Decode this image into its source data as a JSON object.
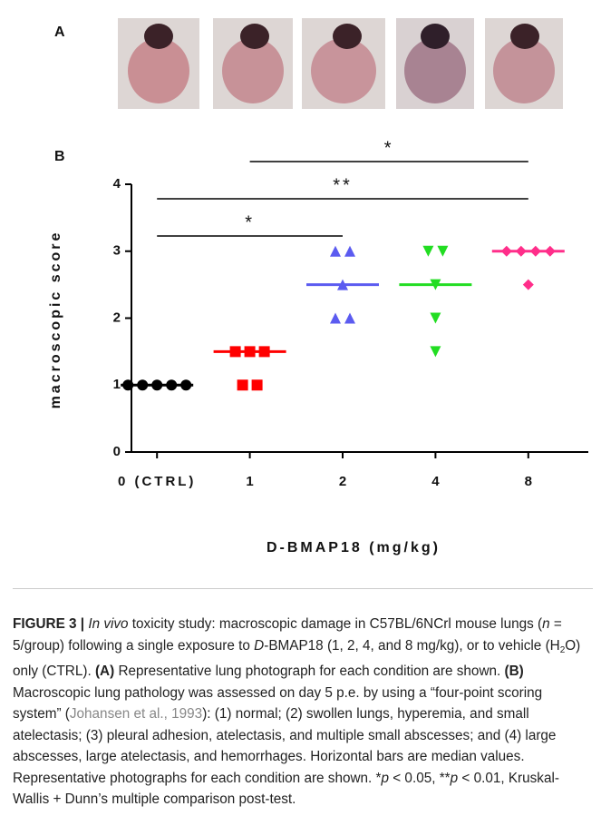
{
  "panels": {
    "a": "A",
    "b": "B"
  },
  "chart_data": {
    "type": "dotplot",
    "x_label": "D-BMAP18 (mg/kg)",
    "y_label": "macroscopic score",
    "categories": [
      "0 (CTRL)",
      "1",
      "2",
      "4",
      "8"
    ],
    "groups": [
      {
        "color": "#000000",
        "marker": "circle",
        "values": [
          1,
          1,
          1,
          1,
          1
        ],
        "median": 1
      },
      {
        "color": "#ff0000",
        "marker": "square",
        "values": [
          1.5,
          1.5,
          1.5,
          1,
          1
        ],
        "median": 1.5
      },
      {
        "color": "#5b5bf0",
        "marker": "triangle-up",
        "values": [
          3,
          3,
          2.5,
          2,
          2
        ],
        "median": 2.5
      },
      {
        "color": "#22dd22",
        "marker": "triangle-down",
        "values": [
          3,
          3,
          2.5,
          2,
          1.5
        ],
        "median": 2.5
      },
      {
        "color": "#ff2e8a",
        "marker": "diamond",
        "values": [
          3,
          3,
          3,
          3,
          2.5
        ],
        "median": 3
      }
    ],
    "ylim": [
      0,
      4
    ],
    "yticks": [
      0,
      1,
      2,
      3,
      4
    ],
    "significance": [
      {
        "from": 0,
        "to": 2,
        "label": "*"
      },
      {
        "from": 0,
        "to": 4,
        "label": "**"
      },
      {
        "from": 1,
        "to": 4,
        "label": "*"
      }
    ]
  },
  "caption": {
    "runs": [
      {
        "text": "FIGURE 3 | ",
        "style": "b"
      },
      {
        "text": "In vivo",
        "style": "i"
      },
      {
        "text": " toxicity study: macroscopic damage in C57BL/6NCrl mouse lungs (",
        "style": "n"
      },
      {
        "text": "n",
        "style": "i"
      },
      {
        "text": " = 5/group) following a single exposure to ",
        "style": "n"
      },
      {
        "text": "D",
        "style": "i"
      },
      {
        "text": "-BMAP18 (1, 2, 4, and 8 mg/kg), or to vehicle (H",
        "style": "n"
      },
      {
        "text": "2",
        "style": "sub"
      },
      {
        "text": "O) only (CTRL). ",
        "style": "n"
      },
      {
        "text": "(A)",
        "style": "b"
      },
      {
        "text": " Representative lung photograph for each condition are shown. ",
        "style": "n"
      },
      {
        "text": "(B)",
        "style": "b"
      },
      {
        "text": " Macroscopic lung pathology was assessed on day 5 p.e. by using a “four-point scoring system” (",
        "style": "n"
      },
      {
        "text": "Johansen et al., 1993",
        "style": "cite"
      },
      {
        "text": "): (1) normal; (2) swollen lungs, hyperemia, and small atelectasis; (3) pleural adhesion, atelectasis, and multiple small abscesses; and (4) large abscesses, large atelectasis, and hemorrhages. Horizontal bars are median values. Representative photographs for each condition are shown. *",
        "style": "n"
      },
      {
        "text": "p",
        "style": "i"
      },
      {
        "text": " < 0.05, **",
        "style": "n"
      },
      {
        "text": "p",
        "style": "i"
      },
      {
        "text": " < 0.01, Kruskal-Wallis + Dunn’s multiple comparison post-test.",
        "style": "n"
      }
    ]
  }
}
